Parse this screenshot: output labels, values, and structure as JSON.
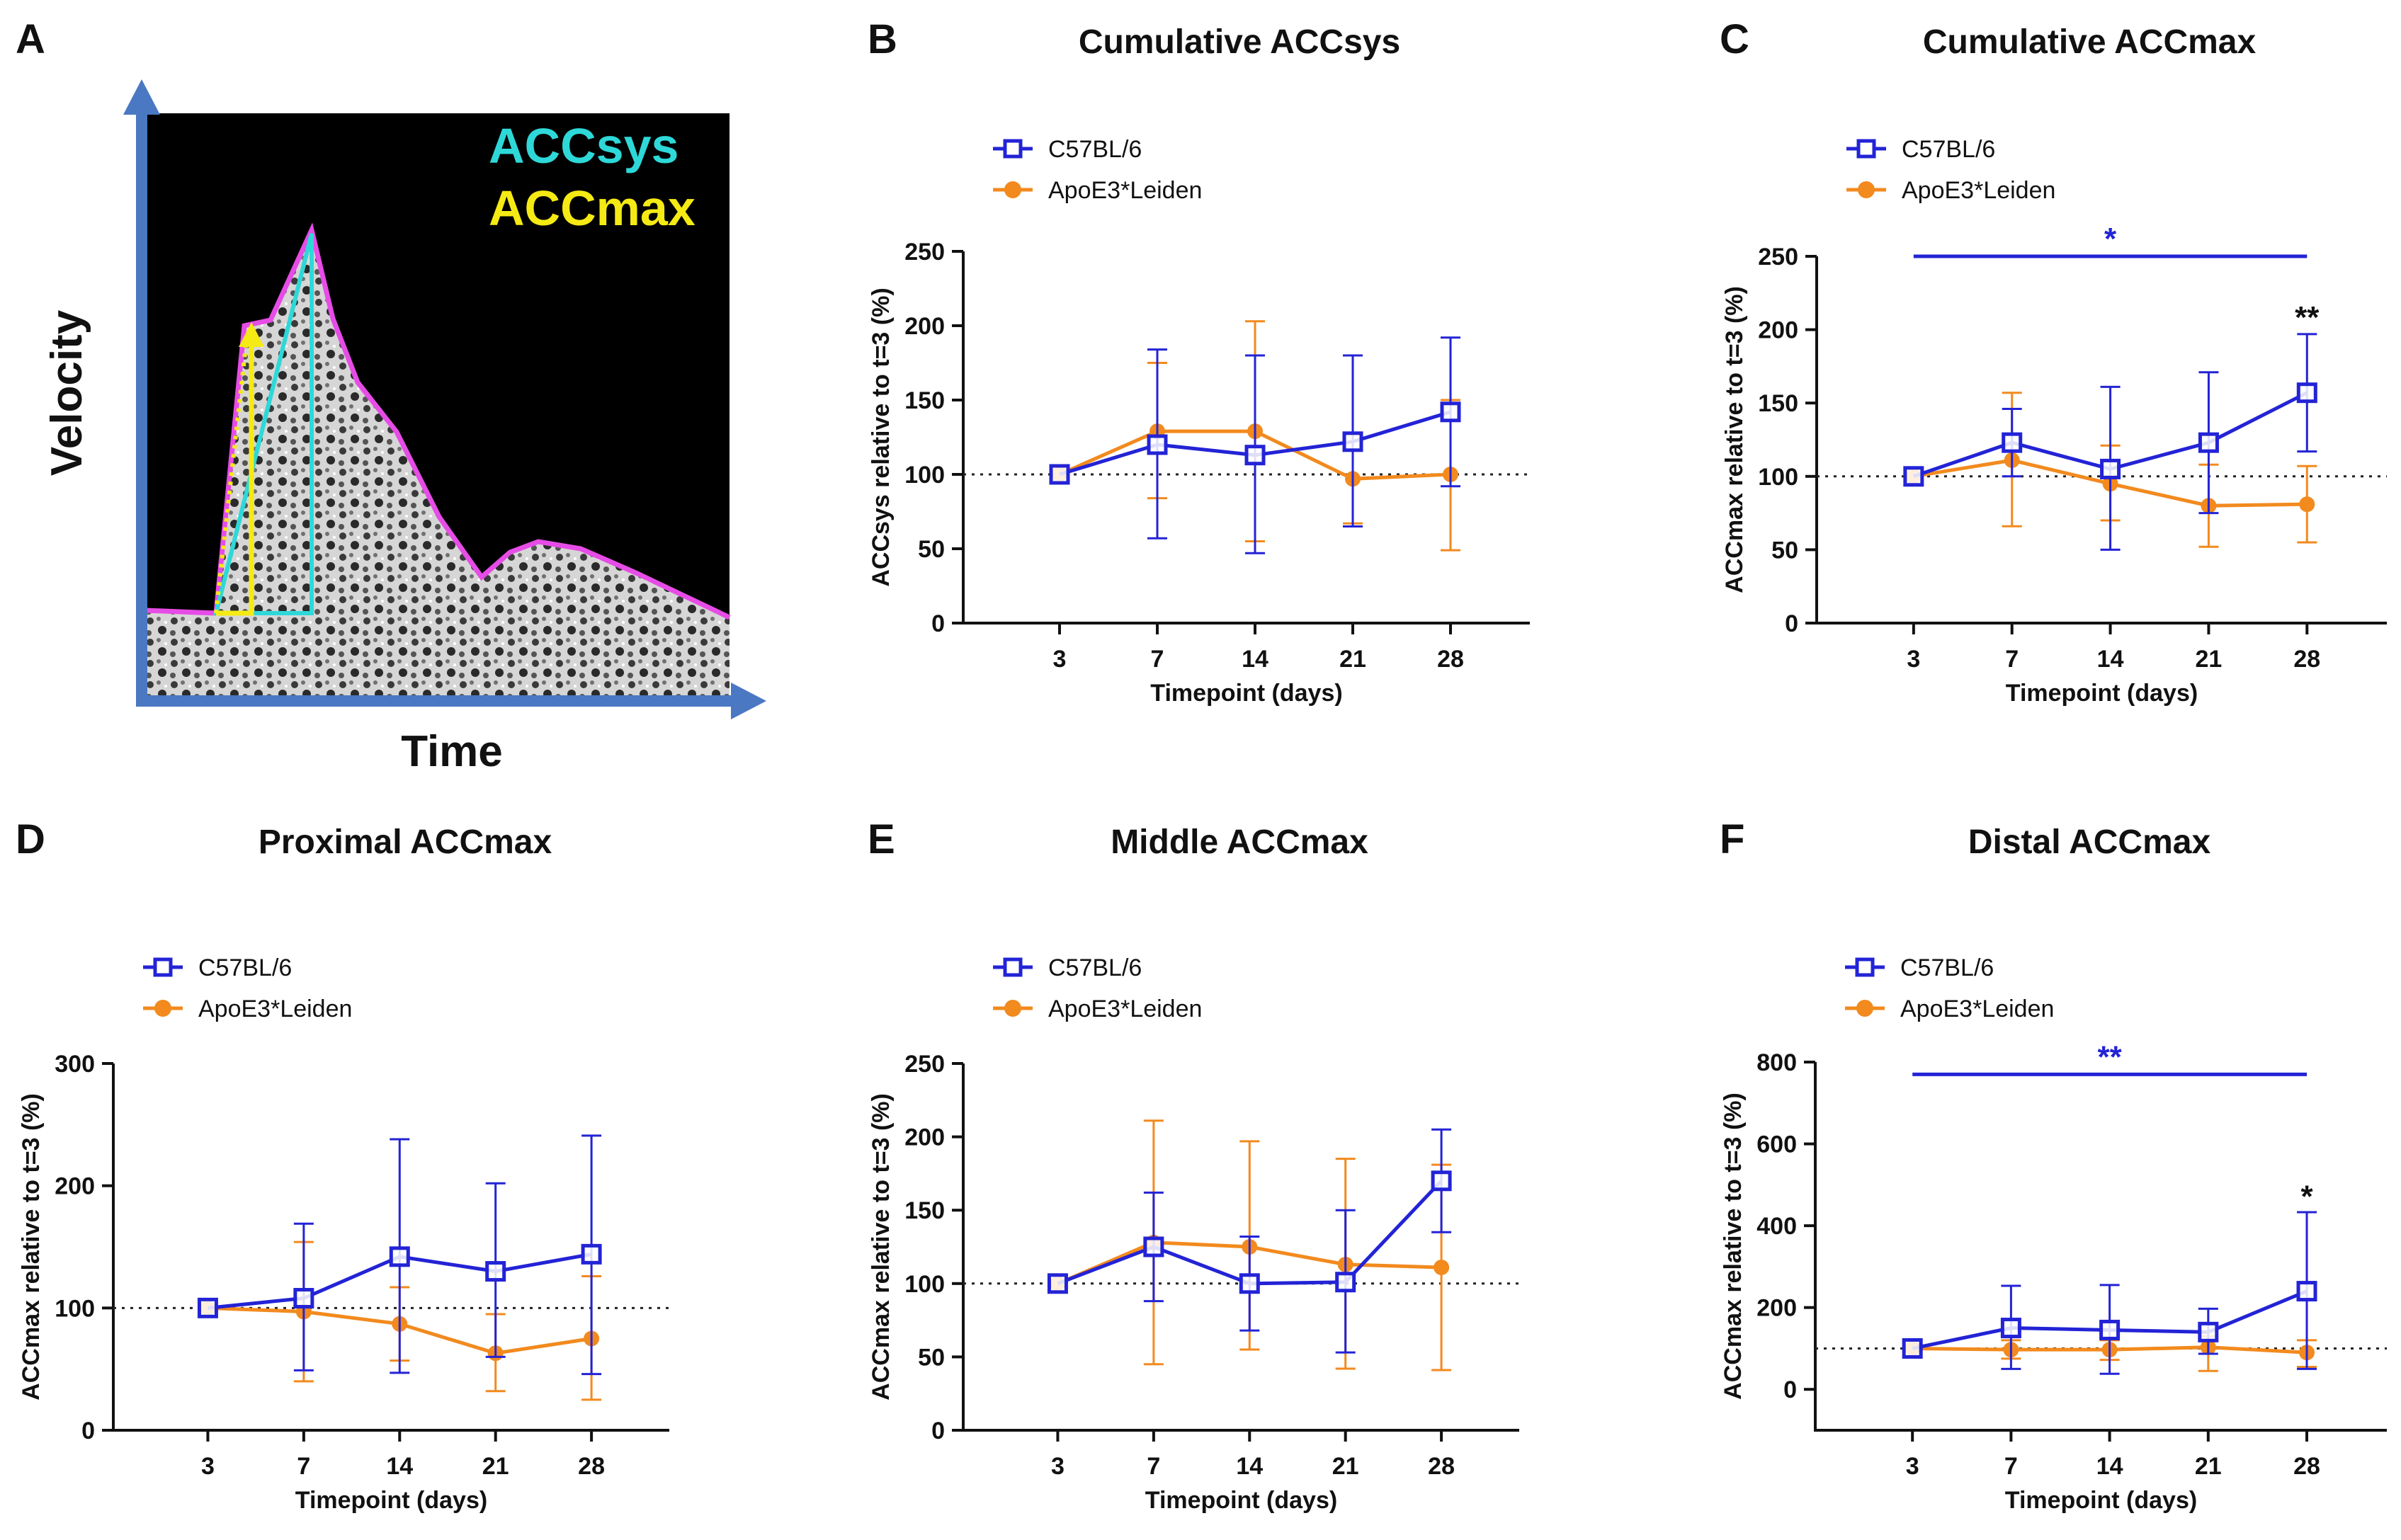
{
  "colors": {
    "c57": "#2323d6",
    "apoe": "#f28a1e",
    "axis": "#111111",
    "schematic_arrow": "#4a78c2",
    "accsys": "#2ed8d8",
    "accmax": "#f5ea14",
    "envelope": "#e64ce6"
  },
  "panel_a": {
    "label": "A",
    "y_axis_label": "Velocity",
    "x_axis_label": "Time",
    "legend_accsys": "ACCsys",
    "legend_accmax": "ACCmax"
  },
  "chart_data": [
    {
      "id": "B",
      "label": "B",
      "type": "line",
      "title": "Cumulative ACCsys",
      "xlabel": "Timepoint (days)",
      "ylabel": "ACCsys relative to t=3 (%)",
      "categories": [
        "3",
        "7",
        "14",
        "21",
        "28"
      ],
      "ylim": [
        0,
        250
      ],
      "yticks": [
        0,
        50,
        100,
        150,
        200,
        250
      ],
      "reference_line": 100,
      "legend": [
        "C57BL/6",
        "ApoE3*Leiden"
      ],
      "series": [
        {
          "name": "C57BL/6",
          "values": [
            100,
            120,
            113,
            122,
            142
          ],
          "err_hi": [
            100,
            184,
            180,
            180,
            192
          ],
          "err_lo": [
            100,
            57,
            47,
            65,
            92
          ]
        },
        {
          "name": "ApoE3*Leiden",
          "values": [
            100,
            129,
            129,
            97,
            100
          ],
          "err_hi": [
            100,
            175,
            203,
            127,
            150
          ],
          "err_lo": [
            100,
            84,
            55,
            67,
            49
          ]
        }
      ],
      "significance_bar": null,
      "point_annotations": []
    },
    {
      "id": "C",
      "label": "C",
      "type": "line",
      "title": "Cumulative ACCmax",
      "xlabel": "Timepoint (days)",
      "ylabel": "ACCmax relative to t=3 (%)",
      "categories": [
        "3",
        "7",
        "14",
        "21",
        "28"
      ],
      "ylim": [
        0,
        250
      ],
      "yticks": [
        0,
        50,
        100,
        150,
        200,
        250
      ],
      "reference_line": 100,
      "legend": [
        "C57BL/6",
        "ApoE3*Leiden"
      ],
      "series": [
        {
          "name": "C57BL/6",
          "values": [
            100,
            123,
            105,
            123,
            157
          ],
          "err_hi": [
            100,
            146,
            161,
            171,
            197
          ],
          "err_lo": [
            100,
            100,
            50,
            75,
            117
          ]
        },
        {
          "name": "ApoE3*Leiden",
          "values": [
            100,
            111,
            95,
            80,
            81
          ],
          "err_hi": [
            100,
            157,
            121,
            108,
            107
          ],
          "err_lo": [
            100,
            66,
            70,
            52,
            55
          ]
        }
      ],
      "significance_bar": {
        "from": "3",
        "to": "28",
        "y": 250,
        "text": "*",
        "color": "#2323d6"
      },
      "point_annotations": [
        {
          "category": "28",
          "text": "**",
          "y": 208
        }
      ]
    },
    {
      "id": "D",
      "label": "D",
      "type": "line",
      "title": "Proximal ACCmax",
      "xlabel": "Timepoint (days)",
      "ylabel": "ACCmax relative to t=3 (%)",
      "categories": [
        "3",
        "7",
        "14",
        "21",
        "28"
      ],
      "ylim": [
        0,
        300
      ],
      "yticks": [
        0,
        100,
        200,
        300
      ],
      "reference_line": 100,
      "legend": [
        "C57BL/6",
        "ApoE3*Leiden"
      ],
      "series": [
        {
          "name": "C57BL/6",
          "values": [
            100,
            108,
            142,
            130,
            144
          ],
          "err_hi": [
            100,
            169,
            238,
            202,
            241
          ],
          "err_lo": [
            100,
            49,
            47,
            60,
            46
          ]
        },
        {
          "name": "ApoE3*Leiden",
          "values": [
            100,
            97,
            87,
            63,
            75
          ],
          "err_hi": [
            100,
            154,
            117,
            95,
            126
          ],
          "err_lo": [
            100,
            40,
            57,
            32,
            25
          ]
        }
      ],
      "significance_bar": null,
      "point_annotations": []
    },
    {
      "id": "E",
      "label": "E",
      "type": "line",
      "title": "Middle ACCmax",
      "xlabel": "Timepoint (days)",
      "ylabel": "ACCmax relative to t=3 (%)",
      "categories": [
        "3",
        "7",
        "14",
        "21",
        "28"
      ],
      "ylim": [
        0,
        250
      ],
      "yticks": [
        0,
        50,
        100,
        150,
        200,
        250
      ],
      "reference_line": 100,
      "legend": [
        "C57BL/6",
        "ApoE3*Leiden"
      ],
      "series": [
        {
          "name": "C57BL/6",
          "values": [
            100,
            125,
            100,
            101,
            170
          ],
          "err_hi": [
            100,
            162,
            132,
            150,
            205
          ],
          "err_lo": [
            100,
            88,
            68,
            53,
            135
          ]
        },
        {
          "name": "ApoE3*Leiden",
          "values": [
            100,
            128,
            125,
            113,
            111
          ],
          "err_hi": [
            100,
            211,
            197,
            185,
            181
          ],
          "err_lo": [
            100,
            45,
            55,
            42,
            41
          ]
        }
      ],
      "significance_bar": null,
      "point_annotations": []
    },
    {
      "id": "F",
      "label": "F",
      "type": "line",
      "title": "Distal ACCmax",
      "xlabel": "Timepoint (days)",
      "ylabel": "ACCmax relative to t=3 (%)",
      "categories": [
        "3",
        "7",
        "14",
        "21",
        "28"
      ],
      "ylim": [
        -100,
        800
      ],
      "yticks": [
        0,
        200,
        400,
        600,
        800
      ],
      "reference_line": 100,
      "legend": [
        "C57BL/6",
        "ApoE3*Leiden"
      ],
      "series": [
        {
          "name": "C57BL/6",
          "values": [
            100,
            150,
            145,
            140,
            240
          ],
          "err_hi": [
            100,
            253,
            255,
            197,
            433
          ],
          "err_lo": [
            100,
            50,
            38,
            87,
            50
          ]
        },
        {
          "name": "ApoE3*Leiden",
          "values": [
            100,
            97,
            97,
            103,
            90
          ],
          "err_hi": [
            100,
            120,
            120,
            130,
            120
          ],
          "err_lo": [
            100,
            75,
            72,
            45,
            55
          ]
        }
      ],
      "significance_bar": {
        "from": "3",
        "to": "28",
        "y": 770,
        "text": "**",
        "color": "#2323d6"
      },
      "point_annotations": [
        {
          "category": "28",
          "text": "*",
          "y": 470
        }
      ]
    }
  ]
}
